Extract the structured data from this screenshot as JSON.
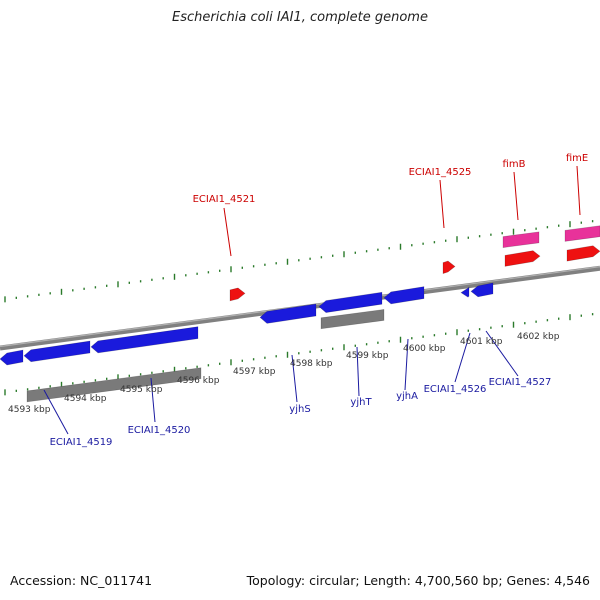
{
  "title": "Escherichia coli IAI1, complete genome",
  "footer": {
    "accession": "Accession: NC_011741",
    "stats": "Topology: circular; Length: 4,700,560 bp; Genes: 4,546"
  },
  "colors": {
    "forward_cds": "#ee1111",
    "reverse_cds": "#1a1adc",
    "forward_special": "#e8329a",
    "gene_bar": "#7a7a7a",
    "backbone": "#808080",
    "tick": "#2a7a2a",
    "forward_label": "#cc0000",
    "reverse_label": "#1a1aa0"
  },
  "scale_ticks": [
    "4593 kbp",
    "4594 kbp",
    "4595 kbp",
    "4596 kbp",
    "4597 kbp",
    "4598 kbp",
    "4599 kbp",
    "4600 kbp",
    "4601 kbp",
    "4602 kbp"
  ],
  "forward_labels": [
    "ECIAI1_4521",
    "ECIAI1_4525",
    "fimB",
    "fimE"
  ],
  "reverse_labels": [
    "ECIAI1_4519",
    "ECIAI1_4520",
    "yjhS",
    "yjhT",
    "yjhA",
    "ECIAI1_4526",
    "ECIAI1_4527"
  ]
}
